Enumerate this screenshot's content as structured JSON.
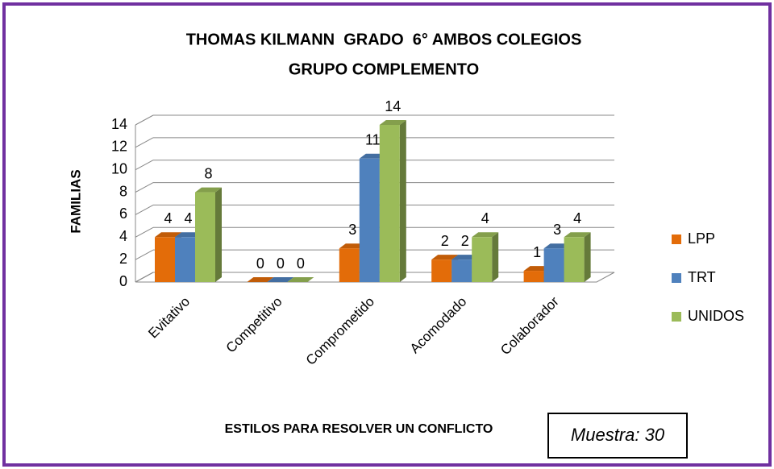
{
  "chart_data": {
    "type": "bar3d",
    "title": [
      "THOMAS KILMANN  GRADO  6° AMBOS COLEGIOS",
      "GRUPO COMPLEMENTO"
    ],
    "y_label": "FAMILIAS",
    "x_label": "ESTILOS PARA RESOLVER UN CONFLICTO",
    "annotation": "Muestra: 30",
    "categories": [
      "Evitativo",
      "Competitivo",
      "Comprometido",
      "Acomodado",
      "Colaborador"
    ],
    "series": [
      {
        "name": "LPP",
        "color": "#e36c09",
        "values": [
          4,
          0,
          3,
          2,
          1
        ]
      },
      {
        "name": "TRT",
        "color": "#4f81bd",
        "values": [
          4,
          0,
          11,
          2,
          3
        ]
      },
      {
        "name": "UNIDOS",
        "color": "#9bbb59",
        "values": [
          8,
          0,
          14,
          4,
          4
        ]
      }
    ],
    "ylim": [
      0,
      14
    ],
    "yticks": [
      0,
      2,
      4,
      6,
      8,
      10,
      12,
      14
    ],
    "grid": true,
    "legend": "right"
  }
}
